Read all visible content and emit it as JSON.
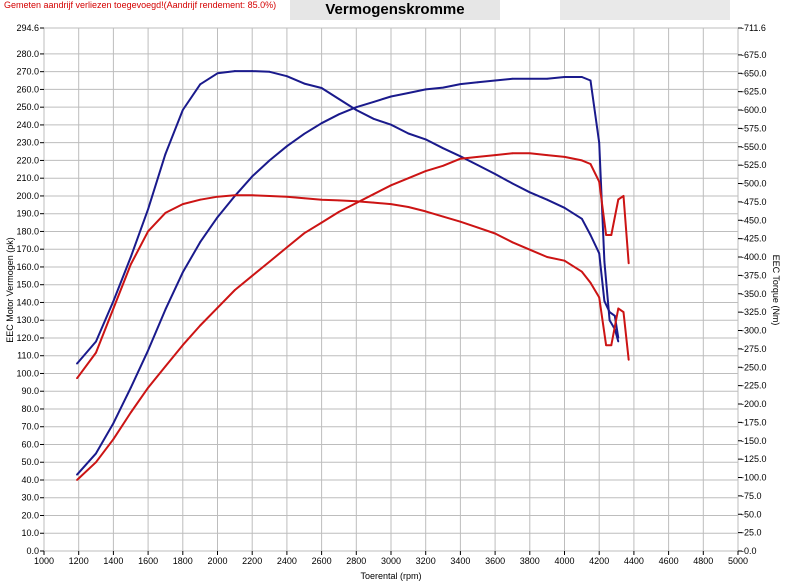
{
  "header": {
    "note": "Gemeten aandrijf verliezen toegevoegd!(Aandrijf rendement: 85.0%)",
    "title": "Vermogenskromme"
  },
  "chart_data": {
    "type": "line",
    "title": "Vermogenskromme",
    "xlabel": "Toerental (rpm)",
    "ylabel_left": "EEC Motor Vermogen (pk)",
    "ylabel_right": "EEC Torque (Nm)",
    "xlim": [
      1000,
      5000
    ],
    "ylim_left": [
      0,
      294.6
    ],
    "ylim_right": [
      0,
      711.6
    ],
    "x_ticks": [
      "1000",
      "1200",
      "1400",
      "1600",
      "1800",
      "2000",
      "2200",
      "2400",
      "2600",
      "2800",
      "3000",
      "3200",
      "3400",
      "3600",
      "3800",
      "4000",
      "4200",
      "4400",
      "4600",
      "4800",
      "5000"
    ],
    "y_left_ticks": [
      "0.0",
      "10.0",
      "20.0",
      "30.0",
      "40.0",
      "50.0",
      "60.0",
      "70.0",
      "80.0",
      "90.0",
      "100.0",
      "110.0",
      "120.0",
      "130.0",
      "140.0",
      "150.0",
      "160.0",
      "170.0",
      "180.0",
      "190.0",
      "200.0",
      "210.0",
      "220.0",
      "230.0",
      "240.0",
      "250.0",
      "260.0",
      "270.0",
      "280.0",
      "294.6"
    ],
    "y_right_ticks": [
      "0.0",
      "25.0",
      "50.0",
      "75.0",
      "100.0",
      "125.0",
      "150.0",
      "175.0",
      "200.0",
      "225.0",
      "250.0",
      "275.0",
      "300.0",
      "325.0",
      "350.0",
      "375.0",
      "400.0",
      "425.0",
      "450.0",
      "475.0",
      "500.0",
      "525.0",
      "550.0",
      "575.0",
      "600.0",
      "625.0",
      "650.0",
      "675.0",
      "711.6"
    ],
    "grid": true,
    "colors": {
      "blue": "#1a1a8c",
      "red": "#cc1414"
    },
    "series": [
      {
        "color": "#1a1a8c",
        "axis": "left",
        "x": [
          1190,
          1300,
          1400,
          1500,
          1600,
          1700,
          1800,
          1900,
          2000,
          2100,
          2200,
          2300,
          2400,
          2500,
          2600,
          2700,
          2800,
          2900,
          3000,
          3100,
          3200,
          3300,
          3400,
          3500,
          3600,
          3700,
          3800,
          3900,
          4000,
          4100,
          4150,
          4200,
          4230,
          4260,
          4290,
          4310
        ],
        "y": [
          43,
          55,
          72,
          92,
          113,
          136,
          157,
          174,
          188,
          200,
          211,
          220,
          228,
          235,
          241,
          246,
          250,
          253,
          256,
          258,
          260,
          261,
          263,
          264,
          265,
          266,
          266,
          266,
          267,
          267,
          265,
          230,
          163,
          130,
          125,
          118
        ]
      },
      {
        "color": "#1a1a8c",
        "axis": "right",
        "x": [
          1190,
          1300,
          1400,
          1500,
          1600,
          1700,
          1800,
          1900,
          2000,
          2100,
          2200,
          2300,
          2400,
          2500,
          2600,
          2700,
          2800,
          2900,
          3000,
          3100,
          3200,
          3300,
          3400,
          3500,
          3600,
          3700,
          3800,
          3900,
          4000,
          4100,
          4150,
          4200,
          4230,
          4260,
          4290,
          4310
        ],
        "y": [
          255,
          285,
          340,
          400,
          465,
          540,
          600,
          635,
          650,
          653,
          653,
          652,
          646,
          636,
          630,
          615,
          600,
          588,
          580,
          568,
          560,
          548,
          537,
          525,
          513,
          500,
          488,
          478,
          467,
          452,
          430,
          405,
          340,
          325,
          320,
          290
        ]
      },
      {
        "color": "#cc1414",
        "axis": "left",
        "x": [
          1190,
          1300,
          1400,
          1500,
          1600,
          1700,
          1800,
          1900,
          2000,
          2100,
          2200,
          2300,
          2400,
          2500,
          2600,
          2700,
          2800,
          2900,
          3000,
          3100,
          3200,
          3300,
          3400,
          3500,
          3600,
          3700,
          3800,
          3900,
          4000,
          4100,
          4150,
          4200,
          4240,
          4270,
          4310,
          4340,
          4370
        ],
        "y": [
          40,
          50,
          63,
          78,
          92,
          104,
          116,
          127,
          137,
          147,
          155,
          163,
          171,
          179,
          185,
          191,
          196,
          201,
          206,
          210,
          214,
          217,
          221,
          222,
          223,
          224,
          224,
          223,
          222,
          220,
          218,
          208,
          178,
          178,
          198,
          200,
          162
        ]
      },
      {
        "color": "#cc1414",
        "axis": "right",
        "x": [
          1190,
          1300,
          1400,
          1500,
          1600,
          1700,
          1800,
          1900,
          2000,
          2100,
          2200,
          2300,
          2400,
          2500,
          2600,
          2700,
          2800,
          2900,
          3000,
          3100,
          3200,
          3300,
          3400,
          3500,
          3600,
          3700,
          3800,
          3900,
          4000,
          4100,
          4150,
          4200,
          4240,
          4270,
          4310,
          4340,
          4370
        ],
        "y": [
          235,
          270,
          330,
          390,
          435,
          460,
          472,
          478,
          482,
          484,
          484,
          483,
          482,
          480,
          478,
          477,
          476,
          474,
          472,
          468,
          462,
          455,
          448,
          440,
          432,
          420,
          410,
          400,
          395,
          380,
          365,
          345,
          280,
          280,
          330,
          325,
          260
        ]
      }
    ]
  }
}
